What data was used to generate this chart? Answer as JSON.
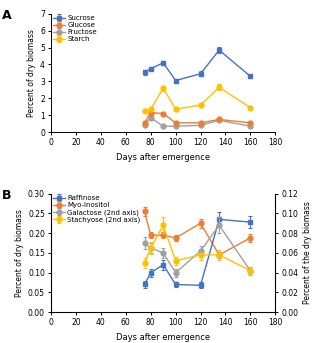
{
  "panel_A": {
    "x": [
      75,
      80,
      90,
      100,
      120,
      135,
      160
    ],
    "sucrose": [
      3.55,
      3.75,
      4.1,
      3.05,
      3.45,
      4.85,
      3.3
    ],
    "sucrose_err": [
      0.15,
      0.1,
      0.12,
      0.12,
      0.15,
      0.18,
      0.12
    ],
    "glucose": [
      0.55,
      1.15,
      1.1,
      0.55,
      0.55,
      0.75,
      0.55
    ],
    "glucose_err": [
      0.08,
      0.12,
      0.1,
      0.05,
      0.05,
      0.08,
      0.06
    ],
    "fructose": [
      0.45,
      0.85,
      0.35,
      0.35,
      0.4,
      0.7,
      0.35
    ],
    "fructose_err": [
      0.06,
      0.09,
      0.05,
      0.04,
      0.04,
      0.07,
      0.04
    ],
    "starch": [
      1.25,
      1.35,
      2.6,
      1.35,
      1.6,
      2.65,
      1.45
    ],
    "starch_err": [
      0.12,
      0.1,
      0.15,
      0.08,
      0.1,
      0.18,
      0.1
    ],
    "ylabel": "Percent of dry biomass",
    "xlabel": "Days after emergence",
    "ylim": [
      0,
      7
    ],
    "yticks": [
      0,
      1,
      2,
      3,
      4,
      5,
      6,
      7
    ],
    "xlim": [
      0,
      180
    ],
    "xticks": [
      0,
      20,
      40,
      60,
      80,
      100,
      120,
      140,
      160,
      180
    ],
    "label": "A",
    "sucrose_color": "#4472C4",
    "glucose_color": "#ED7D31",
    "fructose_color": "#A0A0A0",
    "starch_color": "#FFC000"
  },
  "panel_B": {
    "x": [
      75,
      80,
      90,
      100,
      120,
      135,
      160
    ],
    "raffinose": [
      0.07,
      0.1,
      0.12,
      0.07,
      0.068,
      0.235,
      0.228
    ],
    "raffinose_err": [
      0.008,
      0.01,
      0.012,
      0.007,
      0.008,
      0.018,
      0.015
    ],
    "myo_inositol": [
      0.255,
      0.195,
      0.195,
      0.188,
      0.225,
      0.145,
      0.188
    ],
    "myo_inositol_err": [
      0.012,
      0.008,
      0.008,
      0.008,
      0.012,
      0.008,
      0.01
    ],
    "galactose": [
      0.07,
      0.065,
      0.06,
      0.04,
      0.062,
      0.088,
      0.042
    ],
    "galactose_err": [
      0.006,
      0.005,
      0.005,
      0.004,
      0.005,
      0.008,
      0.004
    ],
    "stachyose": [
      0.05,
      0.065,
      0.088,
      0.052,
      0.058,
      0.058,
      0.042
    ],
    "stachyose_err": [
      0.005,
      0.006,
      0.008,
      0.004,
      0.005,
      0.005,
      0.004
    ],
    "ylabel_left": "Percent of dry biomass",
    "ylabel_right": "Percent of the dry biomass",
    "xlabel": "Days after emergence",
    "ylim_left": [
      0.0,
      0.3
    ],
    "yticks_left": [
      0.0,
      0.05,
      0.1,
      0.15,
      0.2,
      0.25,
      0.3
    ],
    "ylim_right": [
      0.0,
      0.12
    ],
    "yticks_right": [
      0.0,
      0.02,
      0.04,
      0.06,
      0.08,
      0.1,
      0.12
    ],
    "xlim": [
      0,
      180
    ],
    "xticks": [
      0,
      20,
      40,
      60,
      80,
      100,
      120,
      140,
      160,
      180
    ],
    "label": "B",
    "raffinose_color": "#4472C4",
    "myo_inositol_color": "#ED7D31",
    "galactose_color": "#A0A0A0",
    "stachyose_color": "#FFC000"
  }
}
